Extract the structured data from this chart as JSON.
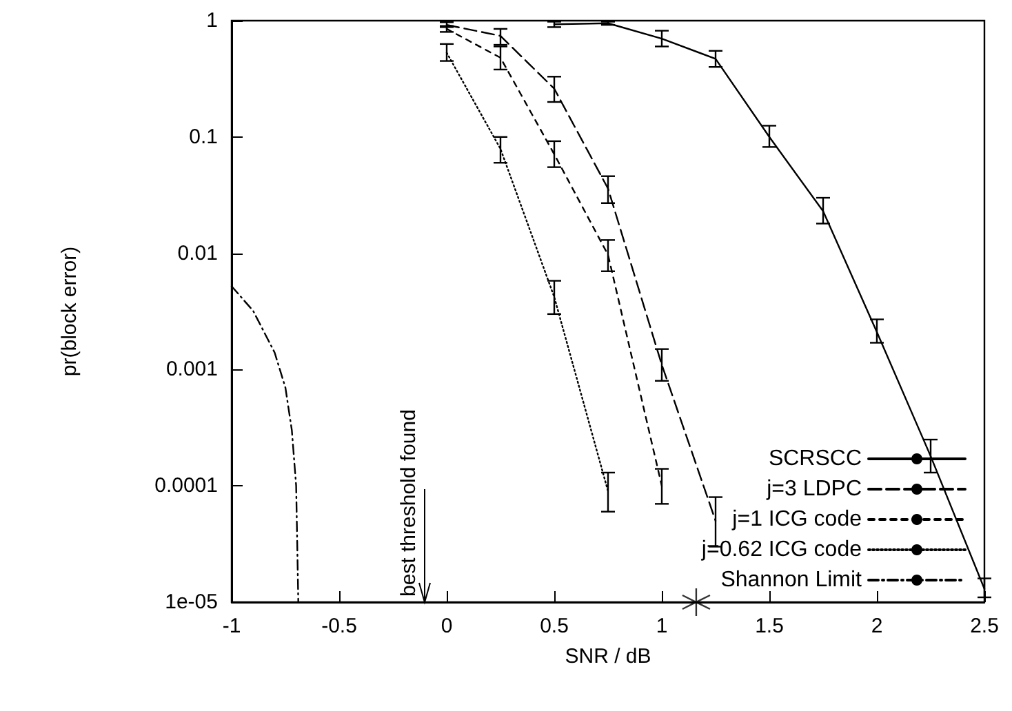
{
  "chart_data": {
    "type": "line",
    "xlabel": "SNR / dB",
    "ylabel": "pr(block error)",
    "log": "y",
    "xlim": [
      -1,
      2.5
    ],
    "xticks": [
      -1,
      -0.5,
      0,
      0.5,
      1,
      1.5,
      2,
      2.5
    ],
    "ylim": [
      1e-05,
      1
    ],
    "yticks": [
      {
        "value": 1e-05,
        "label": "1e-05"
      },
      0.0001,
      0.001,
      0.01,
      0.1,
      1
    ],
    "grid": false,
    "legend": "bottom right",
    "marker": "none",
    "series": [
      {
        "name": "SCRSCC",
        "color": "#000000",
        "line_style": "solid",
        "x": [
          0.5,
          0.75,
          1,
          1.25,
          1.5,
          1.75,
          2,
          2.25,
          2.5
        ],
        "values": [
          0.93,
          0.95,
          0.7,
          0.47,
          0.1,
          0.023,
          0.0021,
          0.00018,
          1.3e-05
        ],
        "errors": [
          [
            0.88,
            0.98
          ],
          [
            0.92,
            0.98
          ],
          [
            0.6,
            0.82
          ],
          [
            0.4,
            0.55
          ],
          [
            0.082,
            0.125
          ],
          [
            0.018,
            0.03
          ],
          [
            0.0017,
            0.0027
          ],
          [
            0.00013,
            0.00025
          ],
          [
            1.1e-05,
            1.6e-05
          ]
        ]
      },
      {
        "name": "j=3 LDPC",
        "color": "#000000",
        "line_style": "longdash",
        "x": [
          0,
          0.25,
          0.5,
          0.75,
          1,
          1.25
        ],
        "values": [
          0.92,
          0.74,
          0.26,
          0.036,
          0.0011,
          5e-05
        ],
        "errors": [
          [
            0.88,
            0.97
          ],
          [
            0.62,
            0.85
          ],
          [
            0.2,
            0.33
          ],
          [
            0.027,
            0.046
          ],
          [
            0.0008,
            0.0015
          ],
          [
            3e-05,
            8e-05
          ]
        ]
      },
      {
        "name": "j=1 ICG code",
        "color": "#000000",
        "line_style": "dashed",
        "x": [
          0,
          0.25,
          0.5,
          0.75,
          1
        ],
        "values": [
          0.85,
          0.48,
          0.071,
          0.0097,
          0.0001
        ],
        "errors": [
          [
            0.8,
            0.9
          ],
          [
            0.38,
            0.6
          ],
          [
            0.055,
            0.092
          ],
          [
            0.007,
            0.013
          ],
          [
            7e-05,
            0.00014
          ]
        ]
      },
      {
        "name": "j=0.62 ICG code",
        "color": "#000000",
        "line_style": "dotted",
        "x": [
          0,
          0.25,
          0.5,
          0.75
        ],
        "values": [
          0.53,
          0.079,
          0.0042,
          9e-05
        ],
        "errors": [
          [
            0.45,
            0.63
          ],
          [
            0.06,
            0.1
          ],
          [
            0.003,
            0.0058
          ],
          [
            6e-05,
            0.00013
          ]
        ]
      },
      {
        "name": "Shannon Limit",
        "color": "#000000",
        "line_style": "dashdot",
        "x": [
          -1,
          -0.9,
          -0.8,
          -0.75,
          -0.72,
          -0.7,
          -0.69
        ],
        "values": [
          0.0052,
          0.0032,
          0.0014,
          0.0007,
          0.0003,
          0.0001,
          1e-05
        ]
      },
      {
        "type": "scatter",
        "color": "#000000",
        "marker": "cross",
        "x": [
          1.16
        ],
        "values": [
          1e-05
        ]
      }
    ],
    "annotations": [
      "best threshold found"
    ]
  }
}
